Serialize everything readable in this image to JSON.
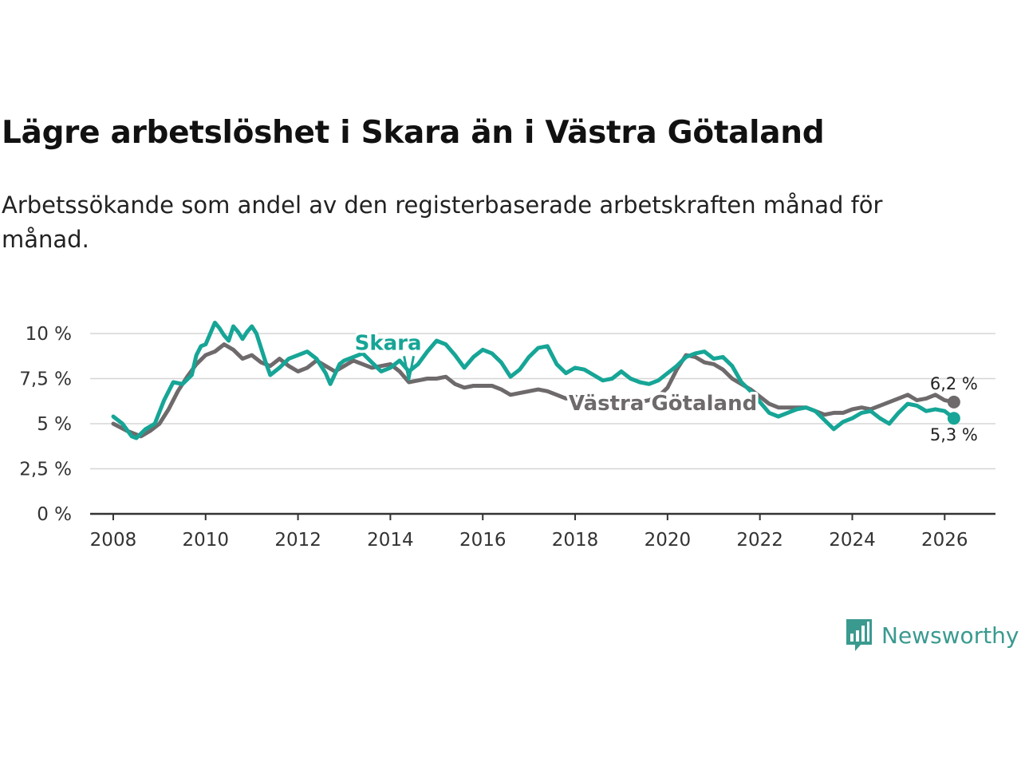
{
  "title": "Lägre arbetslöshet i Skara än i Västra Götaland",
  "subtitle": "Arbetssökande som andel av den registerbaserade arbetskraften månad för månad.",
  "brand": {
    "name": "Newsworthy",
    "color": "#3a9a8f",
    "icon": "bar-chart-speech-bubble-icon"
  },
  "chart_data": {
    "type": "line",
    "title": "Lägre arbetslöshet i Skara än i Västra Götaland",
    "xlabel": "",
    "ylabel": "",
    "xlim": [
      2007.5,
      2027.1
    ],
    "ylim": [
      0,
      10
    ],
    "grid": true,
    "x_ticks": [
      2008,
      2010,
      2012,
      2014,
      2016,
      2018,
      2020,
      2022,
      2024,
      2026
    ],
    "x_tick_labels": [
      "2008",
      "2010",
      "2012",
      "2014",
      "2016",
      "2018",
      "2020",
      "2022",
      "2024",
      "2026"
    ],
    "y_ticks": [
      0,
      2.5,
      5,
      7.5,
      10
    ],
    "y_tick_labels": [
      "0 %",
      "2,5 %",
      "5 %",
      "7,5 %",
      "10 %"
    ],
    "series": [
      {
        "name": "Västra Götaland",
        "color": "#6e6a6c",
        "end_label": "6,2 %",
        "points": [
          [
            2008.0,
            5.0
          ],
          [
            2008.3,
            4.6
          ],
          [
            2008.6,
            4.3
          ],
          [
            2008.8,
            4.6
          ],
          [
            2009.0,
            5.0
          ],
          [
            2009.2,
            5.8
          ],
          [
            2009.4,
            6.8
          ],
          [
            2009.6,
            7.6
          ],
          [
            2009.8,
            8.3
          ],
          [
            2010.0,
            8.8
          ],
          [
            2010.2,
            9.0
          ],
          [
            2010.4,
            9.4
          ],
          [
            2010.6,
            9.1
          ],
          [
            2010.8,
            8.6
          ],
          [
            2011.0,
            8.8
          ],
          [
            2011.2,
            8.4
          ],
          [
            2011.4,
            8.2
          ],
          [
            2011.6,
            8.6
          ],
          [
            2011.8,
            8.2
          ],
          [
            2012.0,
            7.9
          ],
          [
            2012.2,
            8.1
          ],
          [
            2012.4,
            8.5
          ],
          [
            2012.6,
            8.2
          ],
          [
            2012.8,
            7.9
          ],
          [
            2013.0,
            8.2
          ],
          [
            2013.2,
            8.5
          ],
          [
            2013.4,
            8.3
          ],
          [
            2013.6,
            8.1
          ],
          [
            2013.8,
            8.2
          ],
          [
            2014.0,
            8.3
          ],
          [
            2014.2,
            7.9
          ],
          [
            2014.4,
            7.3
          ],
          [
            2014.6,
            7.4
          ],
          [
            2014.8,
            7.5
          ],
          [
            2015.0,
            7.5
          ],
          [
            2015.2,
            7.6
          ],
          [
            2015.4,
            7.2
          ],
          [
            2015.6,
            7.0
          ],
          [
            2015.8,
            7.1
          ],
          [
            2016.0,
            7.1
          ],
          [
            2016.2,
            7.1
          ],
          [
            2016.4,
            6.9
          ],
          [
            2016.6,
            6.6
          ],
          [
            2016.8,
            6.7
          ],
          [
            2017.0,
            6.8
          ],
          [
            2017.2,
            6.9
          ],
          [
            2017.4,
            6.8
          ],
          [
            2017.6,
            6.6
          ],
          [
            2017.8,
            6.4
          ],
          [
            2018.0,
            6.5
          ],
          [
            2018.2,
            6.4
          ],
          [
            2018.4,
            6.2
          ],
          [
            2018.6,
            6.2
          ],
          [
            2018.8,
            6.3
          ],
          [
            2019.0,
            6.2
          ],
          [
            2019.2,
            6.1
          ],
          [
            2019.4,
            6.2
          ],
          [
            2019.6,
            6.3
          ],
          [
            2019.8,
            6.5
          ],
          [
            2020.0,
            7.0
          ],
          [
            2020.2,
            8.0
          ],
          [
            2020.4,
            8.8
          ],
          [
            2020.6,
            8.7
          ],
          [
            2020.8,
            8.4
          ],
          [
            2021.0,
            8.3
          ],
          [
            2021.2,
            8.0
          ],
          [
            2021.4,
            7.5
          ],
          [
            2021.6,
            7.2
          ],
          [
            2021.8,
            6.9
          ],
          [
            2022.0,
            6.5
          ],
          [
            2022.2,
            6.1
          ],
          [
            2022.4,
            5.9
          ],
          [
            2022.6,
            5.9
          ],
          [
            2022.8,
            5.9
          ],
          [
            2023.0,
            5.9
          ],
          [
            2023.2,
            5.7
          ],
          [
            2023.4,
            5.5
          ],
          [
            2023.6,
            5.6
          ],
          [
            2023.8,
            5.6
          ],
          [
            2024.0,
            5.8
          ],
          [
            2024.2,
            5.9
          ],
          [
            2024.4,
            5.8
          ],
          [
            2024.6,
            6.0
          ],
          [
            2024.8,
            6.2
          ],
          [
            2025.0,
            6.4
          ],
          [
            2025.2,
            6.6
          ],
          [
            2025.4,
            6.3
          ],
          [
            2025.6,
            6.4
          ],
          [
            2025.8,
            6.6
          ],
          [
            2026.0,
            6.3
          ],
          [
            2026.2,
            6.2
          ]
        ]
      },
      {
        "name": "Skara",
        "color": "#16a596",
        "end_label": "5,3 %",
        "points": [
          [
            2008.0,
            5.4
          ],
          [
            2008.2,
            5.0
          ],
          [
            2008.4,
            4.3
          ],
          [
            2008.5,
            4.2
          ],
          [
            2008.7,
            4.7
          ],
          [
            2008.9,
            5.0
          ],
          [
            2009.1,
            6.3
          ],
          [
            2009.3,
            7.3
          ],
          [
            2009.5,
            7.2
          ],
          [
            2009.7,
            7.7
          ],
          [
            2009.8,
            8.8
          ],
          [
            2009.9,
            9.3
          ],
          [
            2010.0,
            9.4
          ],
          [
            2010.1,
            10.0
          ],
          [
            2010.2,
            10.6
          ],
          [
            2010.3,
            10.3
          ],
          [
            2010.4,
            9.9
          ],
          [
            2010.5,
            9.6
          ],
          [
            2010.6,
            10.4
          ],
          [
            2010.7,
            10.1
          ],
          [
            2010.8,
            9.7
          ],
          [
            2010.9,
            10.1
          ],
          [
            2011.0,
            10.4
          ],
          [
            2011.1,
            10.0
          ],
          [
            2011.2,
            9.2
          ],
          [
            2011.3,
            8.4
          ],
          [
            2011.4,
            7.7
          ],
          [
            2011.6,
            8.1
          ],
          [
            2011.8,
            8.6
          ],
          [
            2012.0,
            8.8
          ],
          [
            2012.2,
            9.0
          ],
          [
            2012.4,
            8.6
          ],
          [
            2012.6,
            7.8
          ],
          [
            2012.7,
            7.2
          ],
          [
            2012.9,
            8.3
          ],
          [
            2013.0,
            8.5
          ],
          [
            2013.2,
            8.7
          ],
          [
            2013.4,
            8.9
          ],
          [
            2013.6,
            8.4
          ],
          [
            2013.8,
            7.9
          ],
          [
            2014.0,
            8.1
          ],
          [
            2014.2,
            8.5
          ],
          [
            2014.4,
            7.9
          ],
          [
            2014.6,
            8.3
          ],
          [
            2014.8,
            9.0
          ],
          [
            2015.0,
            9.6
          ],
          [
            2015.2,
            9.4
          ],
          [
            2015.4,
            8.8
          ],
          [
            2015.6,
            8.1
          ],
          [
            2015.8,
            8.7
          ],
          [
            2016.0,
            9.1
          ],
          [
            2016.2,
            8.9
          ],
          [
            2016.4,
            8.4
          ],
          [
            2016.6,
            7.6
          ],
          [
            2016.8,
            8.0
          ],
          [
            2017.0,
            8.7
          ],
          [
            2017.2,
            9.2
          ],
          [
            2017.4,
            9.3
          ],
          [
            2017.6,
            8.3
          ],
          [
            2017.8,
            7.8
          ],
          [
            2018.0,
            8.1
          ],
          [
            2018.2,
            8.0
          ],
          [
            2018.4,
            7.7
          ],
          [
            2018.6,
            7.4
          ],
          [
            2018.8,
            7.5
          ],
          [
            2019.0,
            7.9
          ],
          [
            2019.2,
            7.5
          ],
          [
            2019.4,
            7.3
          ],
          [
            2019.6,
            7.2
          ],
          [
            2019.8,
            7.4
          ],
          [
            2020.0,
            7.8
          ],
          [
            2020.2,
            8.2
          ],
          [
            2020.4,
            8.7
          ],
          [
            2020.6,
            8.9
          ],
          [
            2020.8,
            9.0
          ],
          [
            2021.0,
            8.6
          ],
          [
            2021.2,
            8.7
          ],
          [
            2021.4,
            8.2
          ],
          [
            2021.6,
            7.3
          ],
          [
            2021.8,
            6.8
          ],
          [
            2022.0,
            6.2
          ],
          [
            2022.2,
            5.6
          ],
          [
            2022.4,
            5.4
          ],
          [
            2022.6,
            5.6
          ],
          [
            2022.8,
            5.8
          ],
          [
            2023.0,
            5.9
          ],
          [
            2023.2,
            5.7
          ],
          [
            2023.4,
            5.2
          ],
          [
            2023.6,
            4.7
          ],
          [
            2023.8,
            5.1
          ],
          [
            2024.0,
            5.3
          ],
          [
            2024.2,
            5.6
          ],
          [
            2024.4,
            5.7
          ],
          [
            2024.6,
            5.3
          ],
          [
            2024.8,
            5.0
          ],
          [
            2025.0,
            5.6
          ],
          [
            2025.2,
            6.1
          ],
          [
            2025.4,
            6.0
          ],
          [
            2025.6,
            5.7
          ],
          [
            2025.8,
            5.8
          ],
          [
            2026.0,
            5.7
          ],
          [
            2026.2,
            5.3
          ]
        ]
      }
    ]
  }
}
